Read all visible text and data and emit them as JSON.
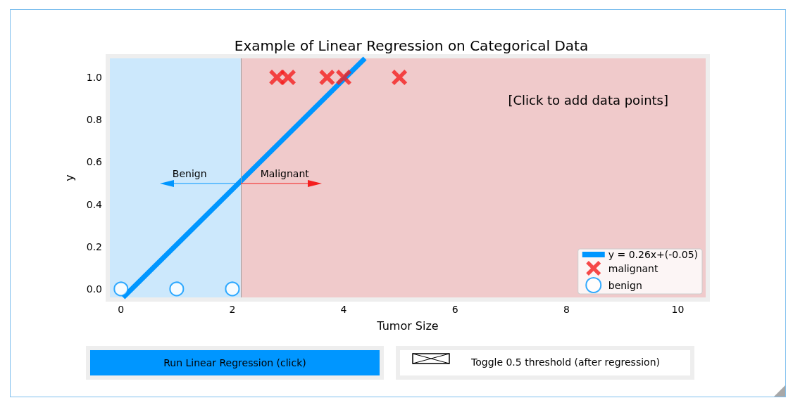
{
  "chart_data": {
    "type": "scatter",
    "title": "Example of Linear Regression on Categorical Data",
    "xlabel": "Tumor Size",
    "ylabel": "y",
    "series": [
      {
        "type": "line",
        "name": "y = 0.26x+(-0.05)",
        "color": "#0096ff",
        "x": [
          0.04,
          4.38
        ],
        "values": [
          -0.04,
          1.09
        ],
        "marker": "none",
        "line_style": "solid"
      },
      {
        "type": "scatter",
        "name": "malignant",
        "color": "#f41e1e",
        "x": [
          2.8,
          3.0,
          3.7,
          4.0,
          5.0
        ],
        "values": [
          1,
          1,
          1,
          1,
          1
        ],
        "marker": "cross"
      },
      {
        "type": "scatter",
        "name": "benign",
        "color": "#0096ff",
        "x": [
          0,
          1,
          2
        ],
        "values": [
          0,
          0,
          0
        ],
        "marker": "circle"
      }
    ],
    "xlim": [
      -0.2,
      10.5
    ],
    "xticks": [
      0,
      2,
      4,
      6,
      8,
      10
    ],
    "ylim": [
      -0.04,
      1.09
    ],
    "yticks": [
      {
        "value": 0,
        "label": "0.0"
      },
      0.2,
      0.4,
      0.6,
      0.8,
      {
        "value": 1,
        "label": "1.0"
      }
    ],
    "bands": [
      {
        "axis": "x",
        "from": -0.2,
        "to": 2.15,
        "color": "#cce8fc"
      },
      {
        "axis": "x",
        "from": 2.15,
        "to": 10.5,
        "color": "#f0cacb"
      }
    ],
    "ref_lines": [
      {
        "axis": "x",
        "value": 2.15,
        "color": "#a0a0a0"
      }
    ],
    "annotations": [
      "[Click to add data points]",
      {
        "text": "Benign",
        "x": 2.15,
        "y": 0.5
      },
      {
        "text": "Malignant",
        "x": 2.15,
        "y": 0.5
      },
      "Run Linear Regression (click)",
      "Toggle 0.5 threshold (after regression)"
    ],
    "legend": "bottom right"
  }
}
